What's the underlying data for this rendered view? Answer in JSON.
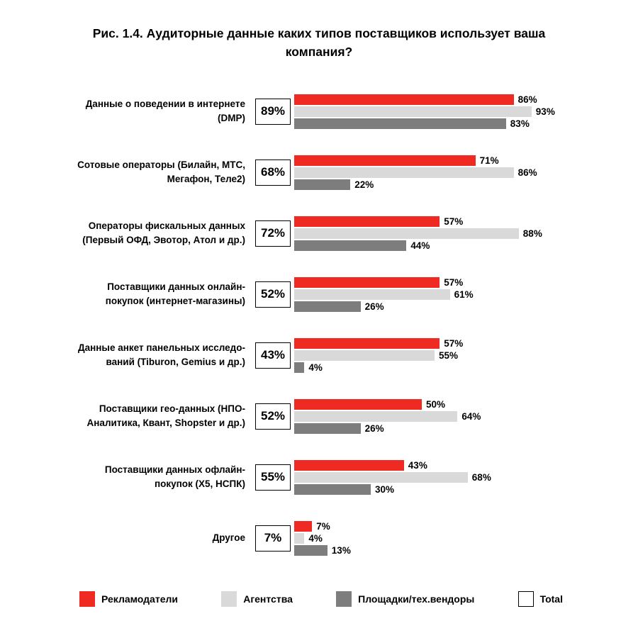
{
  "title": "Рис. 1.4. Аудиторные данные каких типов поставщиков использует ваша компания?",
  "colors": {
    "advertisers": "#ee2a22",
    "agencies": "#d9d9d9",
    "platforms": "#7d7d7d",
    "total_fill": "#ffffff",
    "total_border": "#000000",
    "background": "#ffffff",
    "text": "#000000"
  },
  "chart_data": {
    "type": "bar",
    "orientation": "horizontal",
    "title": "Рис. 1.4. Аудиторные данные каких типов поставщиков использует ваша компания?",
    "value_suffix": "%",
    "xlim": [
      0,
      100
    ],
    "grid": false,
    "legend_position": "bottom",
    "categories": [
      "Данные о поведении в интернете (DMP)",
      "Сотовые операторы (Билайн, МТС, Мегафон, Теле2)",
      "Операторы фискальных данных (Первый ОФД, Эвотор, Атол и др.)",
      "Поставщики данных онлайн-покупок (интернет-магазины)",
      "Данные анкет панельных исследований (Tiburon, Gemius и др.)",
      "Поставщики гео-данных (НПО-Аналитика, Квант, Shopster и др.)",
      "Поставщики данных офлайн-покупок (X5, НСПК)",
      "Другое"
    ],
    "category_label_lines": [
      [
        "Данные о поведении в интернете",
        "(DMP)"
      ],
      [
        "Сотовые операторы (Билайн, МТС,",
        "Мегафон, Теле2)"
      ],
      [
        "Операторы фискальных данных",
        "(Первый ОФД, Эвотор, Атол и др.)"
      ],
      [
        "Поставщики данных онлайн-",
        "покупок (интернет-магазины)"
      ],
      [
        "Данные анкет панельных исследо-",
        "ваний (Tiburon, Gemius и др.)"
      ],
      [
        "Поставщики гео-данных (НПО-",
        "Аналитика, Квант, Shopster и др.)"
      ],
      [
        "Поставщики данных офлайн-",
        "покупок (X5, НСПК)"
      ],
      [
        "Другое"
      ]
    ],
    "series": [
      {
        "name": "Рекламодатели",
        "key": "advertisers",
        "color": "#ee2a22",
        "values": [
          86,
          71,
          57,
          57,
          57,
          50,
          43,
          7
        ]
      },
      {
        "name": "Агентства",
        "key": "agencies",
        "color": "#d9d9d9",
        "values": [
          93,
          86,
          88,
          61,
          55,
          64,
          68,
          4
        ]
      },
      {
        "name": "Площадки/тех.вендоры",
        "key": "platforms",
        "color": "#7d7d7d",
        "values": [
          83,
          22,
          44,
          26,
          4,
          26,
          30,
          13
        ]
      }
    ],
    "totals": [
      89,
      68,
      72,
      52,
      43,
      52,
      55,
      7
    ],
    "total_label": "Total"
  },
  "legend": {
    "items": [
      {
        "label": "Рекламодатели",
        "color": "#ee2a22",
        "outlined": false
      },
      {
        "label": "Агентства",
        "color": "#d9d9d9",
        "outlined": false
      },
      {
        "label": "Площадки/тех.вендоры",
        "color": "#7d7d7d",
        "outlined": false
      },
      {
        "label": "Total",
        "color": "#ffffff",
        "outlined": true
      }
    ]
  }
}
